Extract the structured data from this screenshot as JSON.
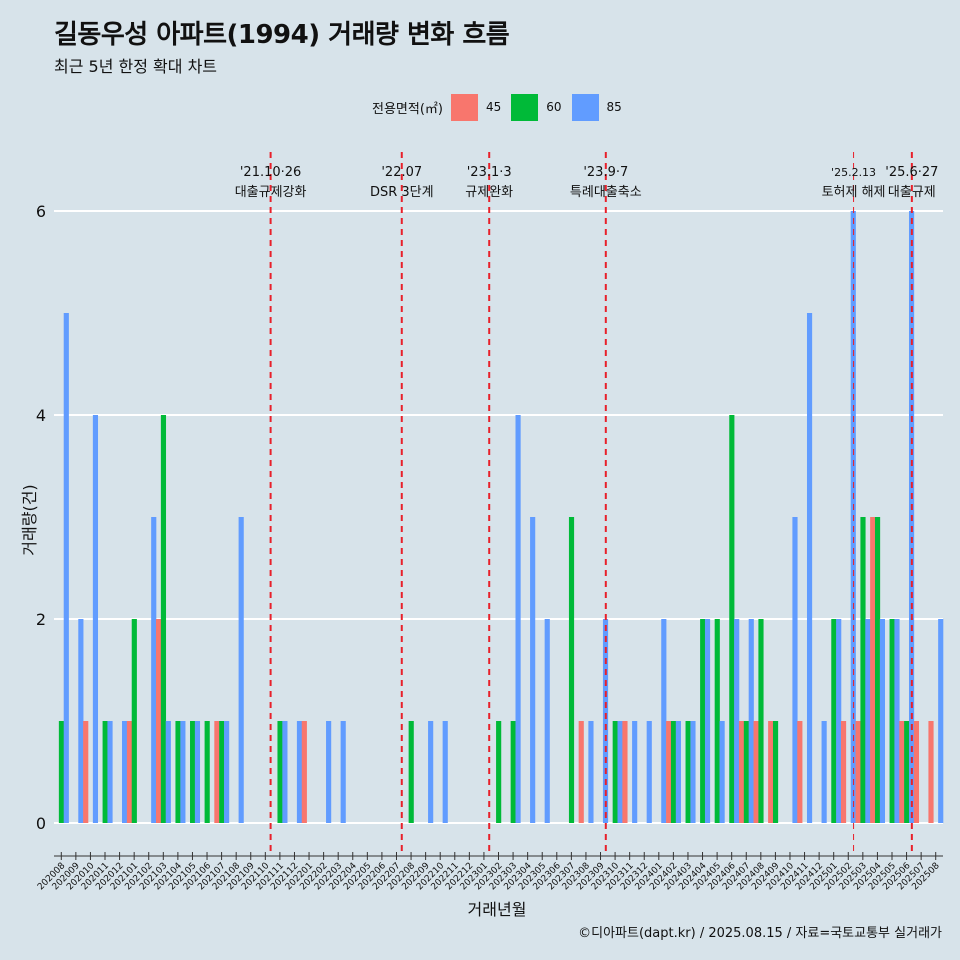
{
  "title": "길동우성 아파트(1994) 거래량 변화 흐름",
  "subtitle": "최근 5년 한정 확대 차트",
  "caption": "©디아파트(dapt.kr) / 2025.08.15 / 자료=국토교통부 실거래가",
  "legend": {
    "title": "전용면적(㎡)",
    "items": [
      {
        "label": "45",
        "color": "#f8766d"
      },
      {
        "label": "60",
        "color": "#00ba38"
      },
      {
        "label": "85",
        "color": "#619cff"
      }
    ]
  },
  "chart_data": {
    "type": "bar",
    "xlabel": "거래년월",
    "ylabel": "거래량(건)",
    "ylim": [
      0,
      6
    ],
    "yticks": [
      0,
      2,
      4,
      6
    ],
    "grid": true,
    "categories": [
      "202008",
      "202009",
      "202010",
      "202011",
      "202012",
      "202101",
      "202102",
      "202103",
      "202104",
      "202105",
      "202106",
      "202107",
      "202108",
      "202109",
      "202110",
      "202111",
      "202112",
      "202201",
      "202202",
      "202203",
      "202204",
      "202205",
      "202206",
      "202207",
      "202208",
      "202209",
      "202210",
      "202211",
      "202212",
      "202301",
      "202302",
      "202303",
      "202304",
      "202305",
      "202306",
      "202307",
      "202308",
      "202309",
      "202310",
      "202311",
      "202312",
      "202401",
      "202402",
      "202403",
      "202404",
      "202405",
      "202406",
      "202407",
      "202408",
      "202409",
      "202410",
      "202411",
      "202412",
      "202501",
      "202502",
      "202503",
      "202504",
      "202505",
      "202506",
      "202507",
      "202508"
    ],
    "series": [
      {
        "name": "45",
        "color": "#f8766d",
        "values": [
          0,
          0,
          1,
          0,
          0,
          1,
          0,
          2,
          0,
          0,
          0,
          1,
          0,
          0,
          0,
          0,
          0,
          1,
          0,
          0,
          0,
          0,
          0,
          0,
          0,
          0,
          0,
          0,
          0,
          0,
          0,
          0,
          0,
          0,
          0,
          0,
          1,
          0,
          0,
          1,
          0,
          0,
          1,
          0,
          0,
          0,
          0,
          1,
          1,
          1,
          0,
          1,
          0,
          0,
          1,
          1,
          3,
          0,
          1,
          1,
          1
        ]
      },
      {
        "name": "60",
        "color": "#00ba38",
        "values": [
          1,
          0,
          0,
          1,
          0,
          2,
          0,
          4,
          1,
          1,
          1,
          1,
          0,
          0,
          0,
          1,
          0,
          0,
          0,
          0,
          0,
          0,
          0,
          0,
          1,
          0,
          0,
          0,
          0,
          0,
          1,
          1,
          0,
          0,
          0,
          3,
          0,
          0,
          1,
          0,
          0,
          0,
          1,
          1,
          2,
          2,
          4,
          1,
          2,
          1,
          0,
          0,
          0,
          2,
          0,
          3,
          3,
          2,
          1,
          0,
          0
        ]
      },
      {
        "name": "85",
        "color": "#619cff",
        "values": [
          5,
          2,
          4,
          1,
          1,
          0,
          3,
          1,
          1,
          1,
          0,
          1,
          3,
          0,
          0,
          1,
          1,
          0,
          1,
          1,
          0,
          0,
          0,
          0,
          0,
          1,
          1,
          0,
          0,
          0,
          0,
          4,
          3,
          2,
          0,
          0,
          1,
          2,
          1,
          1,
          1,
          2,
          1,
          1,
          2,
          1,
          2,
          2,
          0,
          0,
          3,
          5,
          1,
          2,
          6,
          2,
          2,
          2,
          6,
          0,
          2
        ]
      }
    ],
    "annotations": [
      {
        "after": "202110",
        "date": "'21.10·26",
        "text": "대출규제강화"
      },
      {
        "after": "202207",
        "date": "'22.07",
        "text": "DSR 3단계"
      },
      {
        "after": "202301",
        "date": "'23.1·3",
        "text": "규제완화"
      },
      {
        "after": "202309",
        "date": "'23.9·7",
        "text": "특례대출축소"
      },
      {
        "after": "202502",
        "date": "'25.2.13",
        "text": "토허제 해제"
      },
      {
        "after": "202506",
        "date": "'25.6·27",
        "text": "대출규제"
      }
    ]
  }
}
